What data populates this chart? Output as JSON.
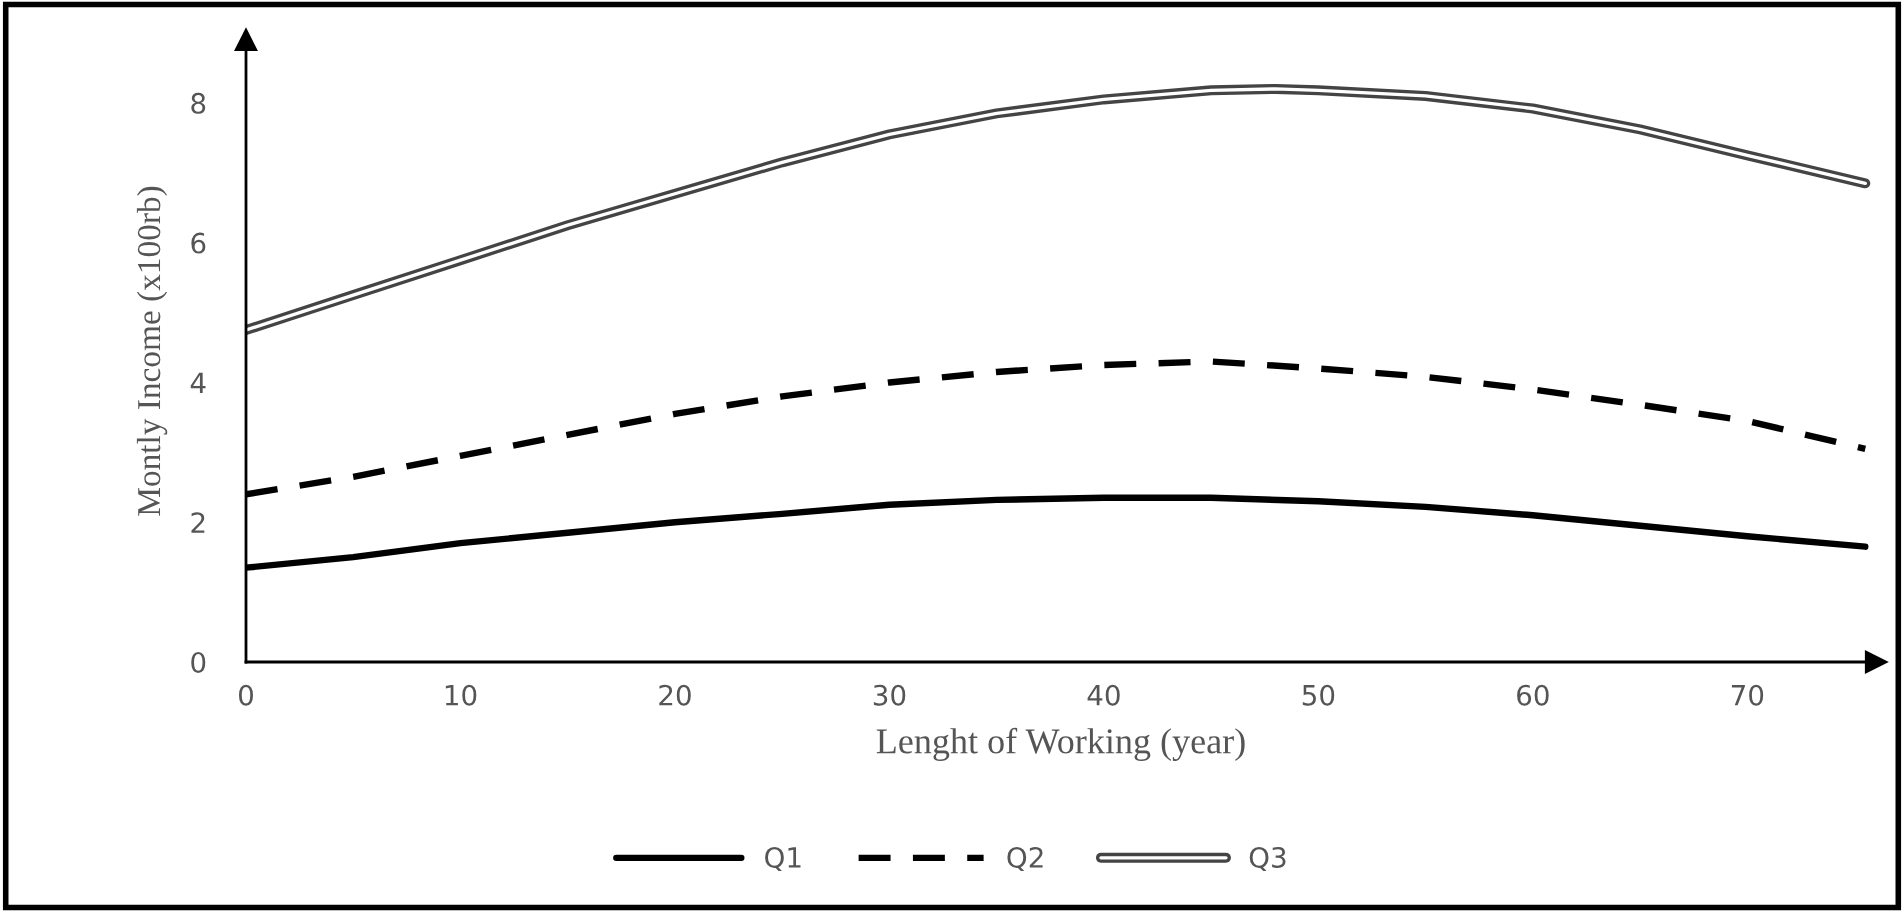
{
  "chart_data": {
    "type": "line",
    "xlabel": "Lenght of Working (year)",
    "ylabel": "Montly Income (x100rb)",
    "xlim": [
      0,
      76
    ],
    "ylim": [
      0,
      8.9
    ],
    "xticks": [
      0,
      10,
      20,
      30,
      40,
      50,
      60,
      70
    ],
    "yticks": [
      0,
      2,
      4,
      6,
      8
    ],
    "grid": false,
    "legend": "bottom",
    "marker": "none",
    "series": [
      {
        "name": "Q1",
        "color": "#000000",
        "line_style": "solid",
        "x": [
          0,
          5,
          10,
          15,
          20,
          25,
          30,
          35,
          40,
          45,
          50,
          55,
          60,
          65,
          70,
          75.5
        ],
        "values": [
          1.35,
          1.5,
          1.7,
          1.85,
          2.0,
          2.12,
          2.25,
          2.32,
          2.35,
          2.35,
          2.3,
          2.22,
          2.1,
          1.95,
          1.8,
          1.65
        ]
      },
      {
        "name": "Q2",
        "color": "#000000",
        "line_style": "dashed",
        "x": [
          0,
          5,
          10,
          15,
          20,
          25,
          30,
          35,
          40,
          45,
          50,
          55,
          60,
          65,
          70,
          75.5
        ],
        "values": [
          2.4,
          2.65,
          2.95,
          3.25,
          3.55,
          3.8,
          4.0,
          4.15,
          4.25,
          4.3,
          4.2,
          4.08,
          3.9,
          3.68,
          3.45,
          3.05
        ]
      },
      {
        "name": "Q3",
        "color": "#ffffff",
        "line_style": "solid",
        "x": [
          0,
          5,
          10,
          15,
          20,
          25,
          30,
          35,
          40,
          45,
          48,
          50,
          55,
          60,
          65,
          70,
          75.5
        ],
        "values": [
          4.75,
          5.25,
          5.75,
          6.25,
          6.7,
          7.15,
          7.55,
          7.85,
          8.05,
          8.18,
          8.2,
          8.18,
          8.1,
          7.92,
          7.62,
          7.25,
          6.85
        ]
      }
    ]
  }
}
